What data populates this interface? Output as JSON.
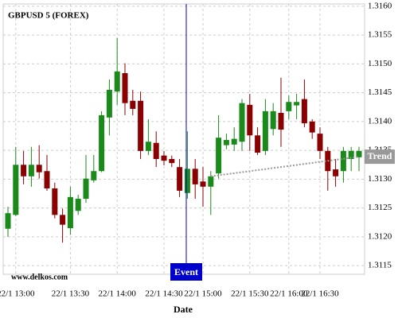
{
  "chart_data": {
    "type": "candlestick",
    "title": "GBPUSD 5 (FOREX)",
    "xlabel": "Date",
    "watermark": "www.delkos.com",
    "categories": [
      null,
      "22/1 13:00",
      null,
      null,
      null,
      null,
      null,
      null,
      "22/1 13:30",
      null,
      null,
      null,
      null,
      null,
      "22/1 14:00",
      null,
      null,
      null,
      null,
      null,
      "22/1 14:30",
      null,
      null,
      null,
      null,
      "22/1 15:00",
      null,
      null,
      null,
      null,
      null,
      "22/1 15:30",
      null,
      null,
      null,
      null,
      "22/1 16:00",
      null,
      null,
      null,
      "22/1 16:30",
      null,
      null,
      null,
      null,
      null
    ],
    "open": [
      1.31214,
      1.31238,
      1.31325,
      1.31305,
      1.31325,
      1.31314,
      1.31284,
      1.31238,
      1.31215,
      1.31245,
      1.31266,
      1.31298,
      1.31314,
      1.31407,
      1.31452,
      1.31484,
      1.31436,
      1.31436,
      1.31349,
      1.31363,
      1.31341,
      1.31335,
      1.31321,
      1.31276,
      1.31318,
      1.31296,
      1.31287,
      1.3131,
      1.31359,
      1.3136,
      1.31365,
      1.31429,
      1.31376,
      1.31349,
      1.31387,
      1.31415,
      1.31418,
      1.31428,
      1.31439,
      1.314,
      1.31379,
      1.31349,
      1.31317,
      1.31314,
      1.31335,
      1.31338
    ],
    "high": [
      1.31252,
      1.31356,
      1.31349,
      1.31356,
      1.31359,
      1.31342,
      1.31294,
      1.31249,
      1.31287,
      1.31273,
      1.31342,
      1.31342,
      1.31418,
      1.31473,
      1.31545,
      1.31501,
      1.31455,
      1.31452,
      1.31404,
      1.31383,
      1.31349,
      1.31341,
      1.31335,
      1.31383,
      1.31335,
      1.31321,
      1.31314,
      1.31411,
      1.31379,
      1.3139,
      1.31439,
      1.31448,
      1.3139,
      1.31439,
      1.31432,
      1.31476,
      1.31445,
      1.31448,
      1.31473,
      1.31404,
      1.3139,
      1.31356,
      1.31335,
      1.31356,
      1.31356,
      1.31356
    ],
    "low": [
      1.312,
      1.31236,
      1.31291,
      1.31287,
      1.31301,
      1.3128,
      1.31232,
      1.3119,
      1.31204,
      1.31238,
      1.31259,
      1.31294,
      1.31312,
      1.31376,
      1.31429,
      1.31411,
      1.31411,
      1.31335,
      1.31342,
      1.31321,
      1.31324,
      1.31321,
      1.31269,
      1.31266,
      1.31266,
      1.31252,
      1.31238,
      1.31301,
      1.31352,
      1.31349,
      1.31349,
      1.31349,
      1.31342,
      1.31342,
      1.31376,
      1.31356,
      1.31404,
      1.31404,
      1.3139,
      1.3137,
      1.31335,
      1.3128,
      1.31287,
      1.31294,
      1.31314,
      1.31314
    ],
    "close": [
      1.31241,
      1.31325,
      1.31305,
      1.31325,
      1.31312,
      1.31284,
      1.31238,
      1.31221,
      1.31269,
      1.31266,
      1.31301,
      1.31314,
      1.31411,
      1.31455,
      1.31487,
      1.31432,
      1.31422,
      1.31349,
      1.31365,
      1.31335,
      1.31332,
      1.31328,
      1.3128,
      1.31318,
      1.31291,
      1.31287,
      1.31305,
      1.31372,
      1.31368,
      1.3137,
      1.31432,
      1.31376,
      1.31346,
      1.31418,
      1.31418,
      1.31386,
      1.31434,
      1.31434,
      1.31397,
      1.31381,
      1.31349,
      1.31314,
      1.31305,
      1.31349,
      1.31349,
      1.31349
    ],
    "up_color": "#1a8a1a",
    "down_color": "#8b0000",
    "ylim": [
      1.31135,
      1.31604
    ],
    "yticks": [
      {
        "value": 1.3115,
        "label": "1.3115"
      },
      {
        "value": 1.312,
        "label": "1.3120"
      },
      {
        "value": 1.3125,
        "label": "1.3125"
      },
      {
        "value": 1.313,
        "label": "1.3130"
      },
      {
        "value": 1.3135,
        "label": "1.3135"
      },
      {
        "value": 1.314,
        "label": "1.3140"
      },
      {
        "value": 1.3145,
        "label": "1.3145"
      },
      {
        "value": 1.315,
        "label": "1.3150"
      },
      {
        "value": 1.3155,
        "label": "1.3155"
      },
      {
        "value": 1.316,
        "label": "1.3160"
      }
    ],
    "grid": true,
    "event": {
      "label": "Event",
      "color": "#0000cc"
    },
    "trend": {
      "label": "Trend",
      "values": [
        1.31305,
        1.31339
      ],
      "color": "#999999"
    }
  }
}
